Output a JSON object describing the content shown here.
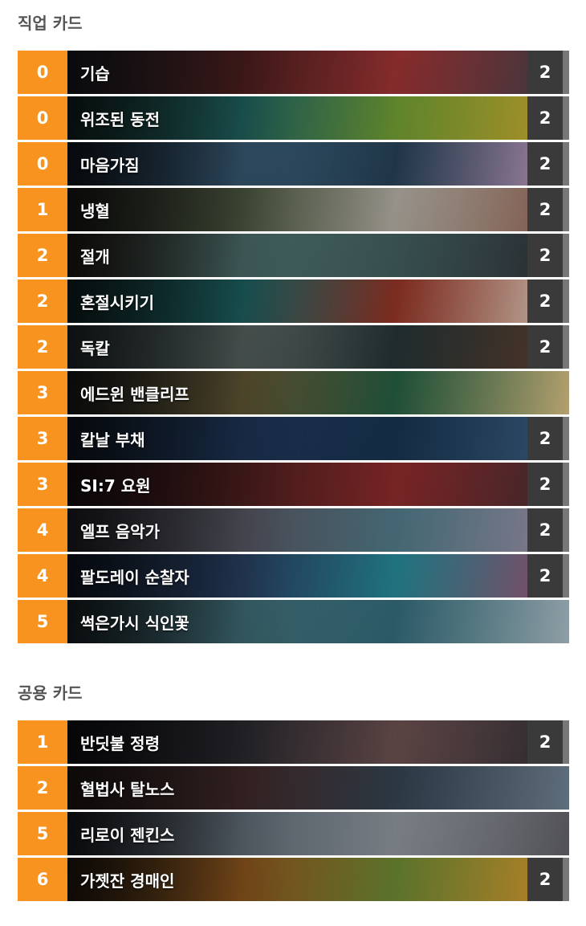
{
  "sections": [
    {
      "title": "직업 카드",
      "cards": [
        {
          "cost": "0",
          "name": "기습",
          "count": "2",
          "art": [
            "#2b2f3a",
            "#6a2a2a",
            "#b33a3a",
            "#3a3e48"
          ]
        },
        {
          "cost": "0",
          "name": "위조된 동전",
          "count": "2",
          "art": [
            "#1d3d3a",
            "#2c8a86",
            "#7fb13a",
            "#c9a12a"
          ]
        },
        {
          "cost": "0",
          "name": "마음가짐",
          "count": "2",
          "art": [
            "#1c2a3a",
            "#4f7fa4",
            "#2a4960",
            "#c59bbf"
          ]
        },
        {
          "cost": "1",
          "name": "냉혈",
          "count": "2",
          "art": [
            "#2a2c28",
            "#6a7a5a",
            "#c9c4b8",
            "#8a5a4a"
          ]
        },
        {
          "cost": "2",
          "name": "절개",
          "count": "2",
          "art": [
            "#3a2e24",
            "#6a9a96",
            "#4a6a6a",
            "#2a2a30"
          ]
        },
        {
          "cost": "2",
          "name": "혼절시키기",
          "count": "2",
          "art": [
            "#1a3a3c",
            "#2a8a8a",
            "#a63a2a",
            "#d9d0c0"
          ]
        },
        {
          "cost": "2",
          "name": "독칼",
          "count": "2",
          "art": [
            "#3a4a4e",
            "#7a8a86",
            "#2a3a3c",
            "#5a3a2a"
          ]
        },
        {
          "cost": "3",
          "name": "에드윈 밴클리프",
          "count": "",
          "art": [
            "#2a2c2c",
            "#8a7a4a",
            "#2a6a4a",
            "#c8b27a"
          ]
        },
        {
          "cost": "3",
          "name": "칼날 부채",
          "count": "2",
          "art": [
            "#1a2a3a",
            "#2a4a7a",
            "#1a3a5a",
            "#3a5a7a"
          ]
        },
        {
          "cost": "3",
          "name": "SI:7 요원",
          "count": "2",
          "art": [
            "#2a1a1e",
            "#6a2a2a",
            "#a03030",
            "#3a2a30"
          ]
        },
        {
          "cost": "4",
          "name": "엘프 음악가",
          "count": "2",
          "art": [
            "#3a3a46",
            "#7a7a8a",
            "#5a8a9a",
            "#9a8aa0"
          ]
        },
        {
          "cost": "4",
          "name": "팔도레이 순찰자",
          "count": "2",
          "art": [
            "#1a2a40",
            "#3a5a8a",
            "#2a9aaa",
            "#a04a6a"
          ]
        },
        {
          "cost": "5",
          "name": "썩은가시 식인꽃",
          "count": "",
          "art": [
            "#2a3a40",
            "#5a9aa8",
            "#3a7a8a",
            "#a0b0b8"
          ]
        }
      ]
    },
    {
      "title": "공용 카드",
      "cards": [
        {
          "cost": "1",
          "name": "반딧불 정령",
          "count": "2",
          "art": [
            "#1a1c22",
            "#3a3a42",
            "#7a5a5a",
            "#2a2a30"
          ]
        },
        {
          "cost": "2",
          "name": "혈법사 탈노스",
          "count": "",
          "art": [
            "#3a2a2a",
            "#5a3a3a",
            "#3a4a5a",
            "#6a7a8a"
          ]
        },
        {
          "cost": "5",
          "name": "리로이 젠킨스",
          "count": "",
          "art": [
            "#2a2e36",
            "#8a9aa8",
            "#a0a8b0",
            "#5a5a60"
          ]
        },
        {
          "cost": "6",
          "name": "가젯잔 경매인",
          "count": "2",
          "art": [
            "#3a2a1a",
            "#c87a2a",
            "#7a9a3a",
            "#d8902a"
          ]
        }
      ]
    }
  ]
}
